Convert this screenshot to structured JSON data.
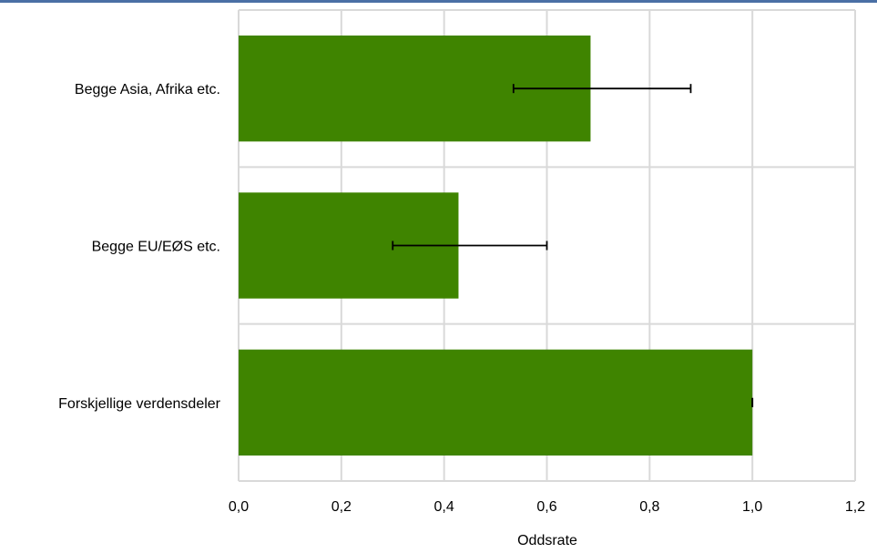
{
  "chart_data": {
    "type": "bar",
    "orientation": "horizontal",
    "title": "",
    "xlabel": "Oddsrate",
    "ylabel": "",
    "xlim": [
      0,
      1.2
    ],
    "x_ticks": [
      "0,0",
      "0,2",
      "0,4",
      "0,6",
      "0,8",
      "1,0",
      "1,2"
    ],
    "x_tick_values": [
      0,
      0.2,
      0.4,
      0.6,
      0.8,
      1.0,
      1.2
    ],
    "grid": true,
    "legend": "none",
    "categories": [
      "Begge Asia, Afrika etc.",
      "Begge EU/EØS etc.",
      "Forskjellige verdensdeler"
    ],
    "values": [
      0.685,
      0.428,
      1.0
    ],
    "error_low": [
      0.535,
      0.3,
      1.0
    ],
    "error_high": [
      0.88,
      0.6,
      1.0
    ]
  },
  "colors": {
    "bar": "#3f8400",
    "grid": "#d9d9d9",
    "top_border": "#4a6fa5",
    "error_bar": "#000000"
  }
}
